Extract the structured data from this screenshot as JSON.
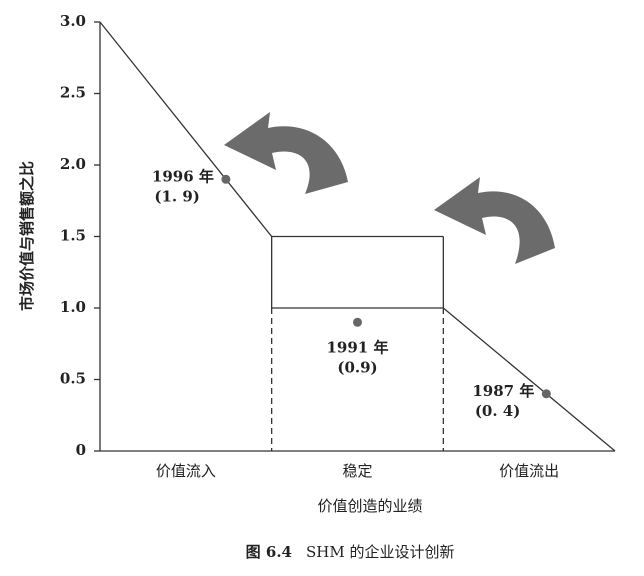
{
  "chart_data": {
    "type": "value-migration",
    "y_label": "市场价值与销售额之比",
    "x_label": "价值创造的业绩",
    "figure_number": "图 6.4",
    "caption": "SHM 的企业设计创新",
    "categories": [
      "价值流入",
      "稳定",
      "价值流出"
    ],
    "outline": [
      3,
      1.5,
      1.0,
      0
    ],
    "point_labels": [
      "1996 年",
      "1991 年",
      "1987 年"
    ],
    "values": [
      1.9,
      0.9,
      0.4
    ],
    "value_labels": [
      "(1. 9)",
      "(0.9)",
      "(0. 4)"
    ],
    "color": "#666666",
    "ylim": [
      0,
      3
    ],
    "yticks": [
      0,
      0.5,
      {
        "value": 1,
        "label": "1.0"
      },
      1.5,
      {
        "value": 2,
        "label": "2.0"
      },
      2.5,
      {
        "value": 3,
        "label": "3.0"
      }
    ]
  }
}
